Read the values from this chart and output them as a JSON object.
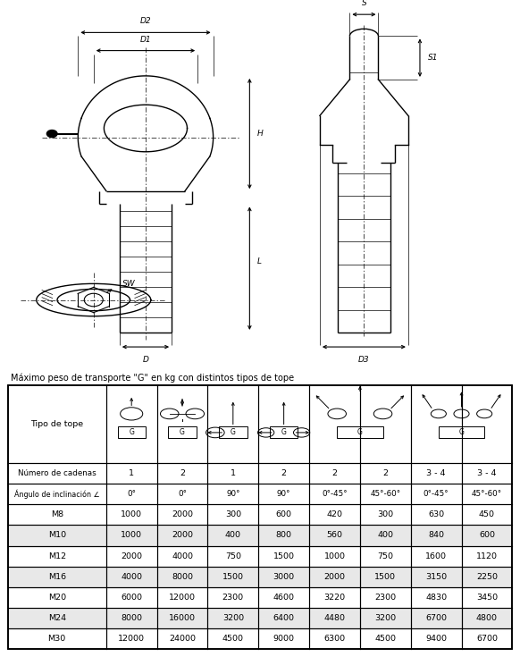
{
  "title_text": "Máximo peso de transporte \"G\" en kg con distintos tipos de tope",
  "row2": [
    "Número de cadenas",
    "1",
    "2",
    "1",
    "2",
    "2",
    "2",
    "3 - 4",
    "3 - 4"
  ],
  "row3": [
    "Ángulo de inclinación ∠",
    "0°",
    "0°",
    "90°",
    "90°",
    "0°-45°",
    "45°-60°",
    "0°-45°",
    "45°-60°"
  ],
  "data_rows": [
    [
      "M8",
      "1000",
      "2000",
      "300",
      "600",
      "420",
      "300",
      "630",
      "450"
    ],
    [
      "M10",
      "1000",
      "2000",
      "400",
      "800",
      "560",
      "400",
      "840",
      "600"
    ],
    [
      "M12",
      "2000",
      "4000",
      "750",
      "1500",
      "1000",
      "750",
      "1600",
      "1120"
    ],
    [
      "M16",
      "4000",
      "8000",
      "1500",
      "3000",
      "2000",
      "1500",
      "3150",
      "2250"
    ],
    [
      "M20",
      "6000",
      "12000",
      "2300",
      "4600",
      "3220",
      "2300",
      "4830",
      "3450"
    ],
    [
      "M24",
      "8000",
      "16000",
      "3200",
      "6400",
      "4480",
      "3200",
      "6700",
      "4800"
    ],
    [
      "M30",
      "12000",
      "24000",
      "4500",
      "9000",
      "6300",
      "4500",
      "9400",
      "6700"
    ]
  ],
  "bg_color": "#ffffff",
  "line_color": "#000000",
  "text_color": "#000000",
  "alt_row_bg": "#e8e8e8"
}
